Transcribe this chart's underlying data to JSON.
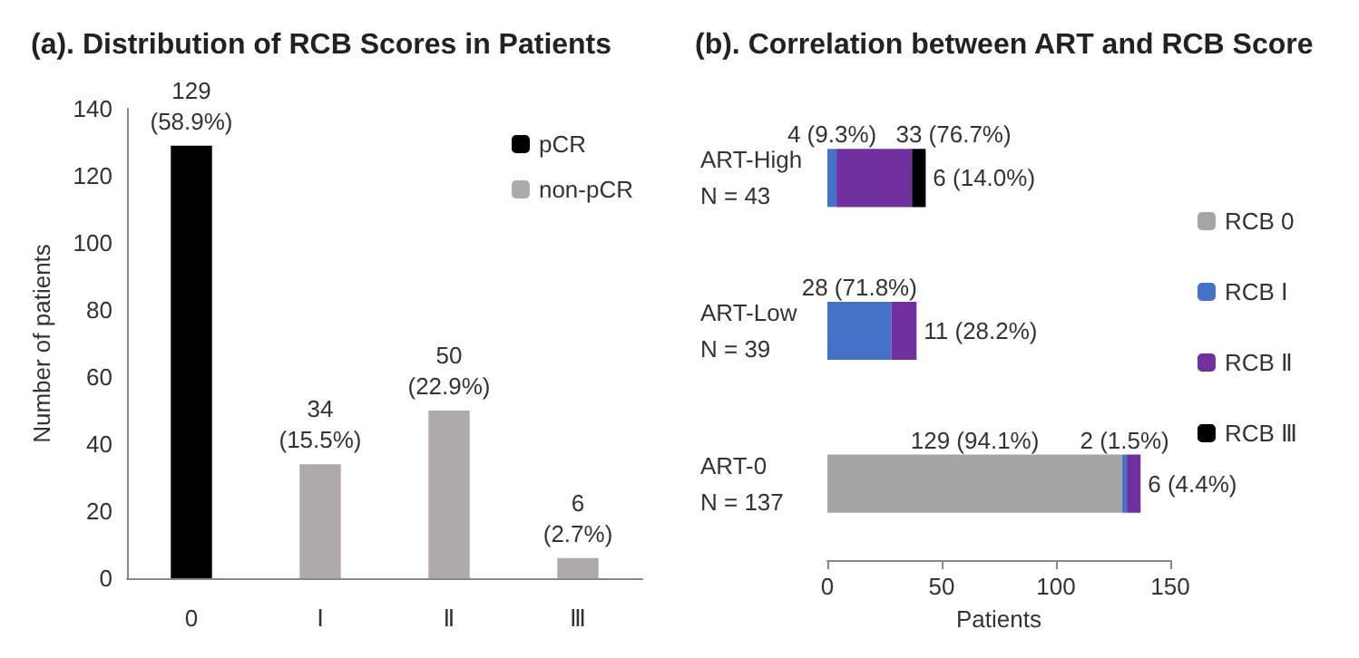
{
  "chart_data": [
    {
      "type": "bar",
      "title": "(a). Distribution of RCB Scores in Patients",
      "ylabel": "Number of patients",
      "categories": [
        "0",
        "Ⅰ",
        "Ⅱ",
        "Ⅲ"
      ],
      "stacked": true,
      "series": [
        {
          "name": "pCR",
          "color": "#000000",
          "values": [
            129,
            null,
            null,
            null
          ],
          "value_labels": [
            "129\n(58.9%)",
            null,
            null,
            null
          ]
        },
        {
          "name": "non-pCR",
          "color": "#aeaaaa",
          "values": [
            null,
            34,
            50,
            6
          ],
          "value_labels": [
            null,
            "34\n(15.5%)",
            "50\n(22.9%)",
            "6\n(2.7%)"
          ]
        }
      ],
      "ylim": [
        0,
        140
      ],
      "yticks": [
        0,
        20,
        40,
        60,
        80,
        100,
        120,
        140
      ],
      "grid": false,
      "legend": "top right"
    },
    {
      "type": "bar",
      "title": "(b). Correlation between ART and RCB Score",
      "xlabel": "Patients",
      "orientation": "horizontal",
      "stacked": true,
      "categories": [
        "ART-High\nN = 43",
        "ART-Low\nN = 39",
        "ART-0\nN = 137"
      ],
      "series": [
        {
          "name": "RCB 0",
          "color": "#a5a5a5",
          "values": [
            null,
            null,
            129
          ],
          "value_labels": [
            null,
            null,
            "129 (94.1%)"
          ]
        },
        {
          "name": "RCB Ⅰ",
          "color": "#4472c4",
          "values": [
            4,
            28,
            2
          ],
          "value_labels": [
            "4 (9.3%)",
            "28 (71.8%)",
            "2 (1.5%)"
          ]
        },
        {
          "name": "RCB Ⅱ",
          "color": "#7030a0",
          "values": [
            33,
            11,
            6
          ],
          "value_labels": [
            "33 (76.7%)",
            "11 (28.2%)",
            "6 (4.4%)"
          ]
        },
        {
          "name": "RCB Ⅲ",
          "color": "#000000",
          "values": [
            6,
            null,
            null
          ],
          "value_labels": [
            "6 (14.0%)",
            null,
            null
          ]
        }
      ],
      "xlim": [
        0,
        150
      ],
      "xticks": [
        0,
        50,
        100,
        150
      ],
      "grid": false,
      "legend": "right"
    }
  ]
}
